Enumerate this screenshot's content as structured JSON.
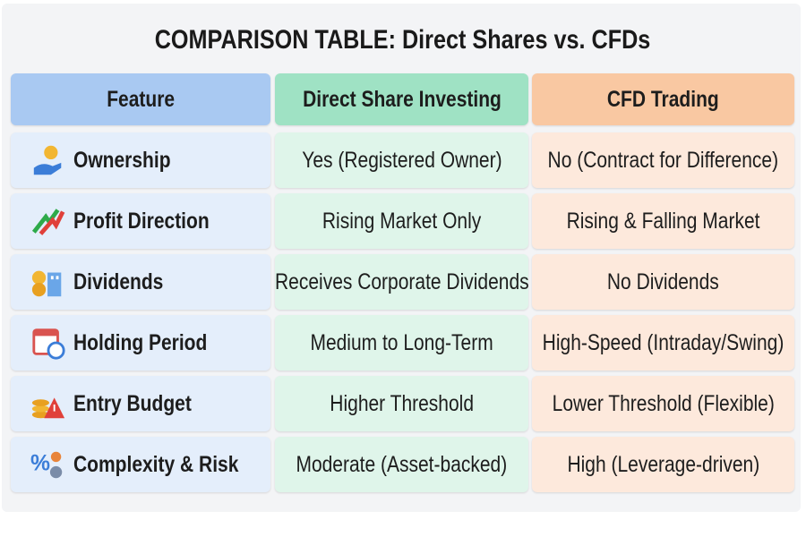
{
  "header": {
    "title": "COMPARISON TABLE: Direct Shares vs. CFDs"
  },
  "table": {
    "headers": [
      "Feature",
      "Direct Share Investing",
      "CFD Trading"
    ],
    "rows": [
      [
        "Ownership",
        "Yes (Registered Owner)",
        "No (Contract for Difference)"
      ],
      [
        "Profit Direction",
        "Rising Market Only",
        "Rising & Falling Market"
      ],
      [
        "Dividends",
        "Receives Corporate Dividends",
        "No Dividends"
      ],
      [
        "Holding Period",
        "Medium to Long-Term",
        "High-Speed (Intraday/Swing)"
      ],
      [
        "Entry Budget",
        "Higher Threshold",
        "Lower Threshold (Flexible)"
      ],
      [
        "Complexity & Risk",
        "Moderate (Asset-backed)",
        "High (Leverage-driven)"
      ]
    ]
  }
}
